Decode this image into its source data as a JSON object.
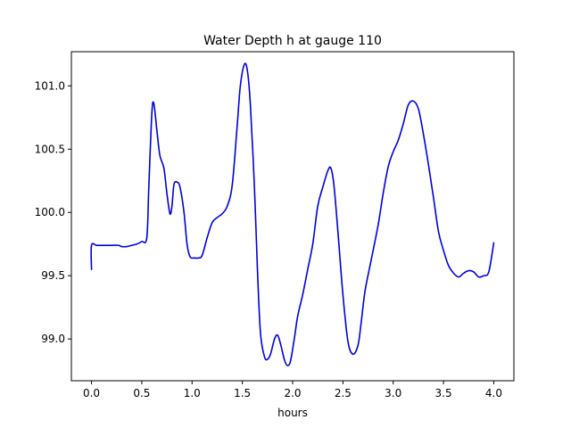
{
  "chart_data": {
    "type": "line",
    "title": "Water Depth h at gauge 110",
    "xlabel": "hours",
    "ylabel": "",
    "xlim": [
      -0.2,
      4.2
    ],
    "ylim": [
      98.67,
      101.27
    ],
    "x_ticks": [
      0.0,
      0.5,
      1.0,
      1.5,
      2.0,
      2.5,
      3.0,
      3.5,
      4.0
    ],
    "x_tick_labels": [
      "0.0",
      "0.5",
      "1.0",
      "1.5",
      "2.0",
      "2.5",
      "3.0",
      "3.5",
      "4.0"
    ],
    "y_ticks": [
      99.0,
      99.5,
      100.0,
      100.5,
      101.0
    ],
    "y_tick_labels": [
      "99.0",
      "99.5",
      "100.0",
      "100.5",
      "101.0"
    ],
    "grid": false,
    "series": [
      {
        "color": "#0000dd",
        "x": [
          0.0,
          0.0,
          0.05,
          0.1,
          0.2,
          0.27,
          0.3,
          0.35,
          0.4,
          0.45,
          0.5,
          0.55,
          0.57,
          0.6,
          0.62,
          0.65,
          0.68,
          0.72,
          0.75,
          0.78,
          0.8,
          0.82,
          0.85,
          0.88,
          0.92,
          0.95,
          0.98,
          1.02,
          1.06,
          1.1,
          1.15,
          1.2,
          1.25,
          1.3,
          1.35,
          1.4,
          1.45,
          1.48,
          1.52,
          1.55,
          1.58,
          1.62,
          1.65,
          1.68,
          1.72,
          1.75,
          1.78,
          1.82,
          1.85,
          1.88,
          1.92,
          1.95,
          1.98,
          2.02,
          2.05,
          2.1,
          2.15,
          2.2,
          2.25,
          2.3,
          2.35,
          2.38,
          2.41,
          2.45,
          2.5,
          2.55,
          2.6,
          2.65,
          2.68,
          2.72,
          2.78,
          2.85,
          2.9,
          2.95,
          3.0,
          3.05,
          3.1,
          3.15,
          3.2,
          3.25,
          3.3,
          3.35,
          3.4,
          3.45,
          3.5,
          3.55,
          3.6,
          3.65,
          3.7,
          3.75,
          3.8,
          3.85,
          3.9,
          3.95,
          4.0
        ],
        "y": [
          99.55,
          99.74,
          99.74,
          99.74,
          99.74,
          99.74,
          99.73,
          99.73,
          99.74,
          99.75,
          99.77,
          99.8,
          100.2,
          100.78,
          100.86,
          100.65,
          100.45,
          100.35,
          100.15,
          99.99,
          100.05,
          100.22,
          100.24,
          100.2,
          100.0,
          99.75,
          99.65,
          99.64,
          99.64,
          99.66,
          99.8,
          99.92,
          99.96,
          99.99,
          100.05,
          100.22,
          100.7,
          101.0,
          101.17,
          101.12,
          100.85,
          100.2,
          99.55,
          99.05,
          98.86,
          98.84,
          98.88,
          99.0,
          99.03,
          98.96,
          98.83,
          98.79,
          98.83,
          99.02,
          99.18,
          99.35,
          99.55,
          99.75,
          100.05,
          100.2,
          100.33,
          100.35,
          100.22,
          99.85,
          99.35,
          98.98,
          98.88,
          98.95,
          99.12,
          99.38,
          99.62,
          99.9,
          100.15,
          100.36,
          100.48,
          100.57,
          100.7,
          100.85,
          100.88,
          100.82,
          100.62,
          100.38,
          100.12,
          99.85,
          99.7,
          99.58,
          99.52,
          99.49,
          99.52,
          99.54,
          99.53,
          99.49,
          99.5,
          99.53,
          99.76
        ]
      }
    ]
  }
}
